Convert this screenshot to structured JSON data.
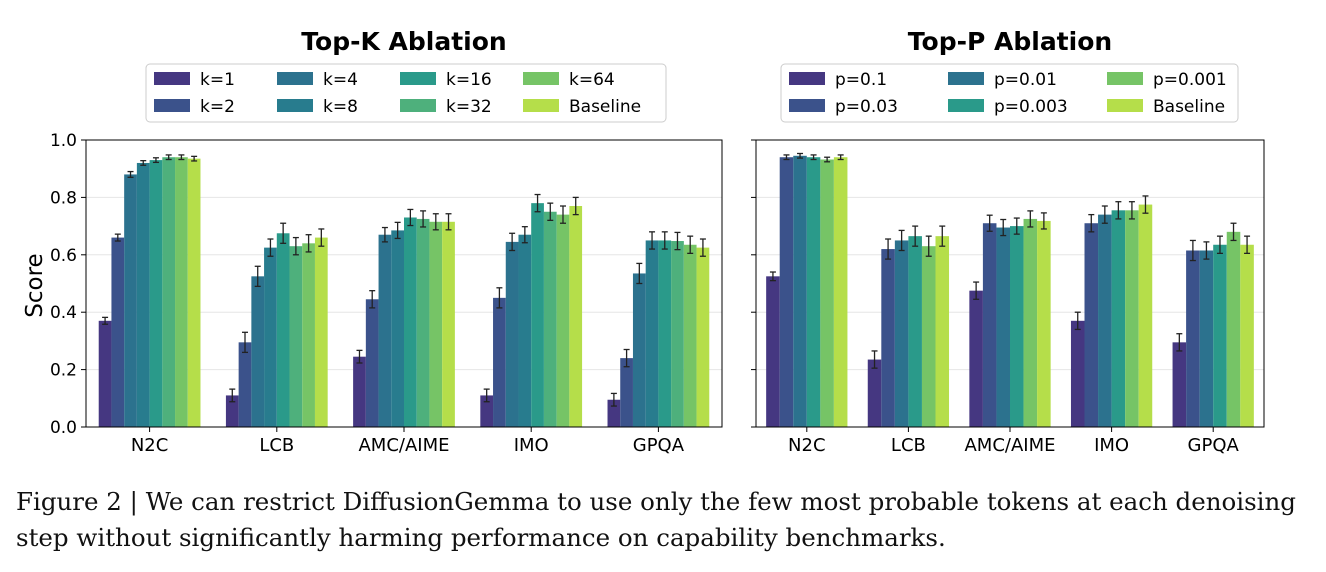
{
  "caption": "Figure 2 | We can restrict DiffusionGemma to use only the few most probable tokens at each denoising step without significantly harming performance on capability benchmarks.",
  "chart_data": [
    {
      "type": "bar",
      "title": "Top-K Ablation",
      "ylabel": "Score",
      "ylim": [
        0,
        1.0
      ],
      "yticks": [
        "0.0",
        "0.2",
        "0.4",
        "0.6",
        "0.8",
        "1.0"
      ],
      "grid": "horizontal",
      "legend_position": "top",
      "categories": [
        "N2C",
        "LCB",
        "AMC/AIME",
        "IMO",
        "GPQA"
      ],
      "series": [
        {
          "name": "k=1",
          "color": "#453781",
          "values": [
            0.37,
            0.11,
            0.245,
            0.11,
            0.095
          ],
          "err": [
            0.012,
            0.022,
            0.022,
            0.022,
            0.022
          ]
        },
        {
          "name": "k=2",
          "color": "#3b528b",
          "values": [
            0.66,
            0.295,
            0.445,
            0.45,
            0.24
          ],
          "err": [
            0.012,
            0.035,
            0.03,
            0.035,
            0.03
          ]
        },
        {
          "name": "k=4",
          "color": "#2c728e",
          "values": [
            0.88,
            0.525,
            0.67,
            0.645,
            0.535
          ],
          "err": [
            0.01,
            0.035,
            0.025,
            0.03,
            0.035
          ]
        },
        {
          "name": "k=8",
          "color": "#287c8e",
          "values": [
            0.92,
            0.625,
            0.685,
            0.67,
            0.65
          ],
          "err": [
            0.008,
            0.03,
            0.028,
            0.028,
            0.03
          ]
        },
        {
          "name": "k=16",
          "color": "#2a9a8a",
          "values": [
            0.93,
            0.675,
            0.73,
            0.78,
            0.65
          ],
          "err": [
            0.008,
            0.035,
            0.028,
            0.03,
            0.03
          ]
        },
        {
          "name": "k=32",
          "color": "#4eb07c",
          "values": [
            0.94,
            0.63,
            0.725,
            0.75,
            0.648
          ],
          "err": [
            0.008,
            0.03,
            0.028,
            0.03,
            0.03
          ]
        },
        {
          "name": "k=64",
          "color": "#76c466",
          "values": [
            0.94,
            0.64,
            0.715,
            0.74,
            0.635
          ],
          "err": [
            0.008,
            0.03,
            0.028,
            0.03,
            0.03
          ]
        },
        {
          "name": "Baseline",
          "color": "#b5de4a",
          "values": [
            0.935,
            0.66,
            0.715,
            0.77,
            0.625
          ],
          "err": [
            0.008,
            0.03,
            0.028,
            0.03,
            0.03
          ]
        }
      ]
    },
    {
      "type": "bar",
      "title": "Top-P Ablation",
      "ylabel": "",
      "ylim": [
        0,
        1.0
      ],
      "grid": "horizontal",
      "legend_position": "top",
      "categories": [
        "N2C",
        "LCB",
        "AMC/AIME",
        "IMO",
        "GPQA"
      ],
      "series": [
        {
          "name": "p=0.1",
          "color": "#453781",
          "values": [
            0.525,
            0.235,
            0.475,
            0.37,
            0.295
          ],
          "err": [
            0.015,
            0.03,
            0.03,
            0.03,
            0.03
          ]
        },
        {
          "name": "p=0.03",
          "color": "#3b528b",
          "values": [
            0.94,
            0.62,
            0.71,
            0.71,
            0.615
          ],
          "err": [
            0.008,
            0.035,
            0.028,
            0.03,
            0.035
          ]
        },
        {
          "name": "p=0.01",
          "color": "#2c728e",
          "values": [
            0.945,
            0.65,
            0.695,
            0.74,
            0.615
          ],
          "err": [
            0.008,
            0.035,
            0.028,
            0.03,
            0.03
          ]
        },
        {
          "name": "p=0.003",
          "color": "#2a9a8a",
          "values": [
            0.94,
            0.665,
            0.7,
            0.755,
            0.635
          ],
          "err": [
            0.008,
            0.035,
            0.028,
            0.03,
            0.03
          ]
        },
        {
          "name": "p=0.001",
          "color": "#76c466",
          "values": [
            0.932,
            0.63,
            0.725,
            0.755,
            0.68
          ],
          "err": [
            0.008,
            0.035,
            0.028,
            0.03,
            0.03
          ]
        },
        {
          "name": "Baseline",
          "color": "#b5de4a",
          "values": [
            0.94,
            0.665,
            0.718,
            0.775,
            0.635
          ],
          "err": [
            0.008,
            0.035,
            0.028,
            0.03,
            0.03
          ]
        }
      ]
    }
  ]
}
